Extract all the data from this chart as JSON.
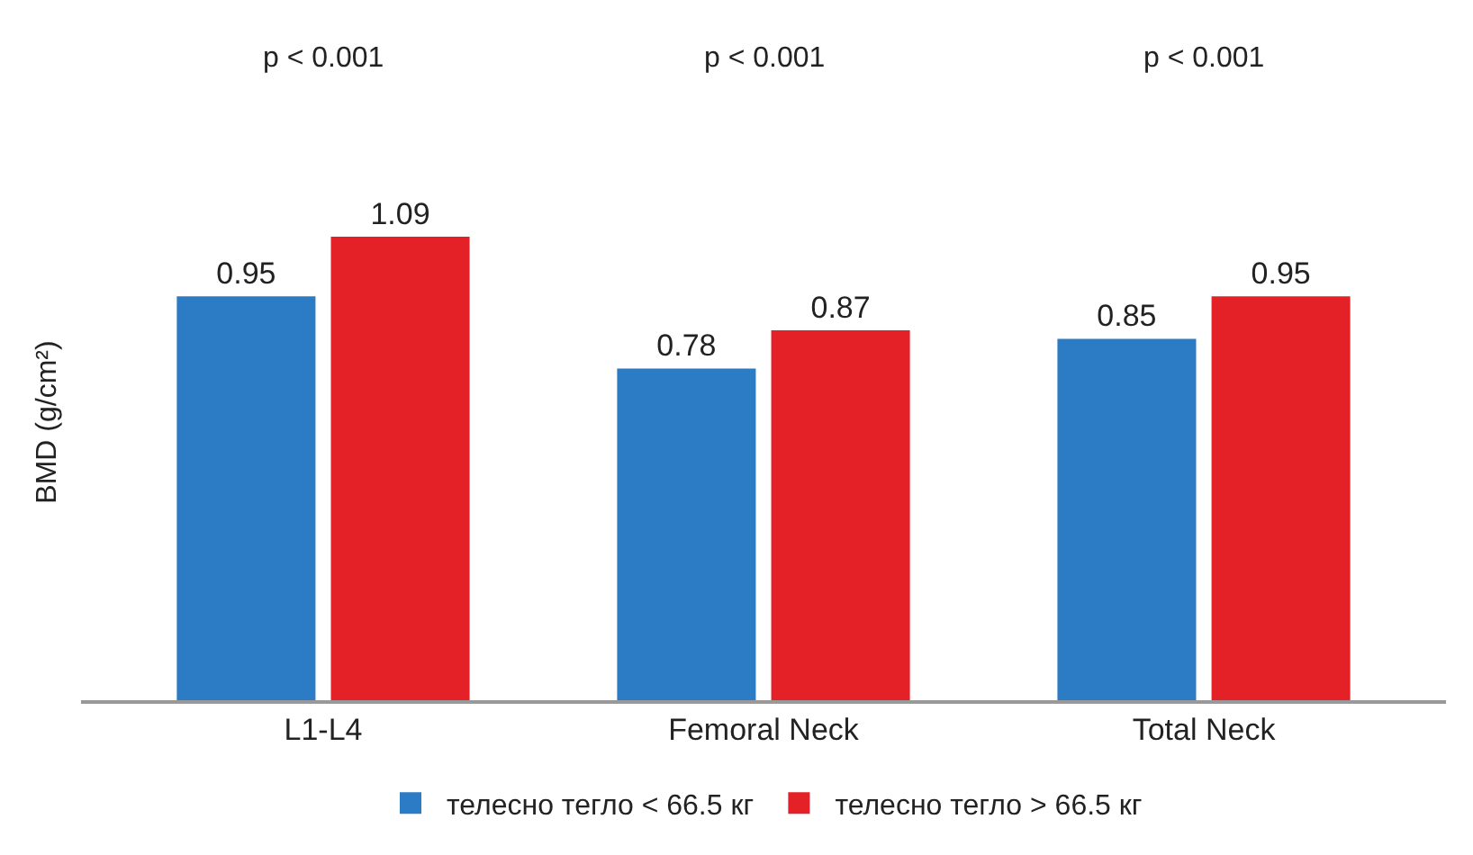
{
  "chart_data": {
    "type": "bar",
    "ylabel": "BMD (g/cm²)",
    "categories": [
      "L1-L4",
      "Femoral Neck",
      "Total Neck"
    ],
    "series": [
      {
        "name": "телесно тегло < 66.5 кг",
        "color": "#2b7cc4",
        "values": [
          0.95,
          0.78,
          0.85
        ]
      },
      {
        "name": "телесно тегло > 66.5 кг",
        "color": "#e52128",
        "values": [
          1.09,
          0.87,
          0.95
        ]
      }
    ],
    "annotations": [
      "p < 0.001",
      "p < 0.001",
      "p < 0.001"
    ],
    "data_labels": true,
    "tick_labels": "x",
    "legend": "bottom",
    "grid": false
  }
}
